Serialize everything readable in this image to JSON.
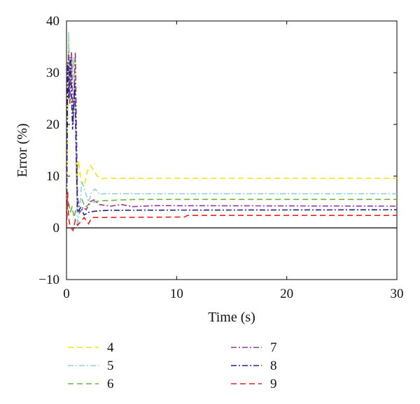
{
  "chart_data": {
    "type": "line",
    "title": "",
    "xlabel": "Time (s)",
    "ylabel": "Error (%)",
    "xlim": [
      0,
      30
    ],
    "ylim": [
      -10,
      40
    ],
    "xticks": [
      {
        "value": 0,
        "label": "0"
      },
      {
        "value": 10,
        "label": "10"
      },
      {
        "value": 20,
        "label": "20"
      },
      {
        "value": 30,
        "label": "30"
      }
    ],
    "yticks": [
      {
        "value": -10,
        "label": "−10"
      },
      {
        "value": 0,
        "label": "0"
      },
      {
        "value": 10,
        "label": "10"
      },
      {
        "value": 20,
        "label": "20"
      },
      {
        "value": 30,
        "label": "30"
      },
      {
        "value": 40,
        "label": "40"
      }
    ],
    "grid": false,
    "legend_position": "below",
    "reference_line": {
      "y": 0,
      "color": "#000000"
    },
    "series": [
      {
        "name": "4",
        "color": "#f2e600",
        "dash": "8,5",
        "x": [
          0,
          0.1,
          0.2,
          0.3,
          0.45,
          0.6,
          0.75,
          0.9,
          1.1,
          1.3,
          1.6,
          1.9,
          2.2,
          2.5,
          2.8,
          3.2,
          3.6,
          30
        ],
        "y": [
          0,
          20,
          37,
          26,
          24,
          33,
          31,
          8,
          13,
          9,
          8,
          11,
          12,
          11,
          10,
          9.5,
          9.6,
          9.6
        ]
      },
      {
        "name": "5",
        "color": "#8fd3d9",
        "dash": "8,3,2,3",
        "x": [
          0,
          0.1,
          0.2,
          0.3,
          0.45,
          0.6,
          0.8,
          1.0,
          1.2,
          1.4,
          1.7,
          2.0,
          2.3,
          2.6,
          3.0,
          3.4,
          30
        ],
        "y": [
          0,
          28,
          38,
          30,
          28,
          33,
          21,
          0,
          4,
          9,
          7,
          5,
          7,
          7.5,
          6.5,
          6.6,
          6.6
        ]
      },
      {
        "name": "6",
        "color": "#6cb33f",
        "dash": "8,5",
        "x": [
          0,
          0.1,
          0.2,
          0.35,
          0.5,
          0.7,
          0.9,
          1.1,
          1.4,
          1.7,
          2.0,
          2.5,
          3.0,
          4.0,
          5.0,
          6.5,
          30
        ],
        "y": [
          0,
          4,
          5,
          3,
          4,
          2,
          4,
          5,
          5.5,
          4,
          4.5,
          5,
          5.2,
          5.3,
          5.4,
          5.5,
          5.5
        ]
      },
      {
        "name": "7",
        "color": "#8e3b9f",
        "dash": "8,3,2,3",
        "x": [
          0,
          0.1,
          0.2,
          0.3,
          0.45,
          0.6,
          0.8,
          1.0,
          1.2,
          1.5,
          1.8,
          2.1,
          2.5,
          3.0,
          4.0,
          5.0,
          6.0,
          8.0,
          30
        ],
        "y": [
          0,
          28,
          34,
          24,
          34,
          20,
          34,
          6,
          3,
          4,
          3.5,
          5,
          5.4,
          4.5,
          4.2,
          4.5,
          4.1,
          4.3,
          4.2
        ]
      },
      {
        "name": "8",
        "color": "#22238a",
        "dash": "8,3,2,3",
        "x": [
          0,
          0.1,
          0.2,
          0.35,
          0.55,
          0.75,
          1.0,
          1.3,
          1.6,
          2.0,
          2.5,
          3.0,
          4.0,
          30
        ],
        "y": [
          0,
          32,
          25,
          33,
          19,
          28,
          3,
          4,
          2.5,
          3,
          3.2,
          3.3,
          3.4,
          3.5
        ]
      },
      {
        "name": "9",
        "color": "#e0261d",
        "dash": "8,5",
        "x": [
          0,
          0.1,
          0.2,
          0.3,
          0.4,
          0.6,
          0.8,
          1.0,
          1.3,
          1.6,
          2.0,
          2.3,
          2.6,
          10.7,
          11.0,
          30
        ],
        "y": [
          0,
          7,
          2,
          0.5,
          0,
          -0.5,
          1.5,
          0.5,
          1.2,
          2,
          0.8,
          2,
          2,
          2.1,
          2.4,
          2.4
        ]
      }
    ]
  }
}
